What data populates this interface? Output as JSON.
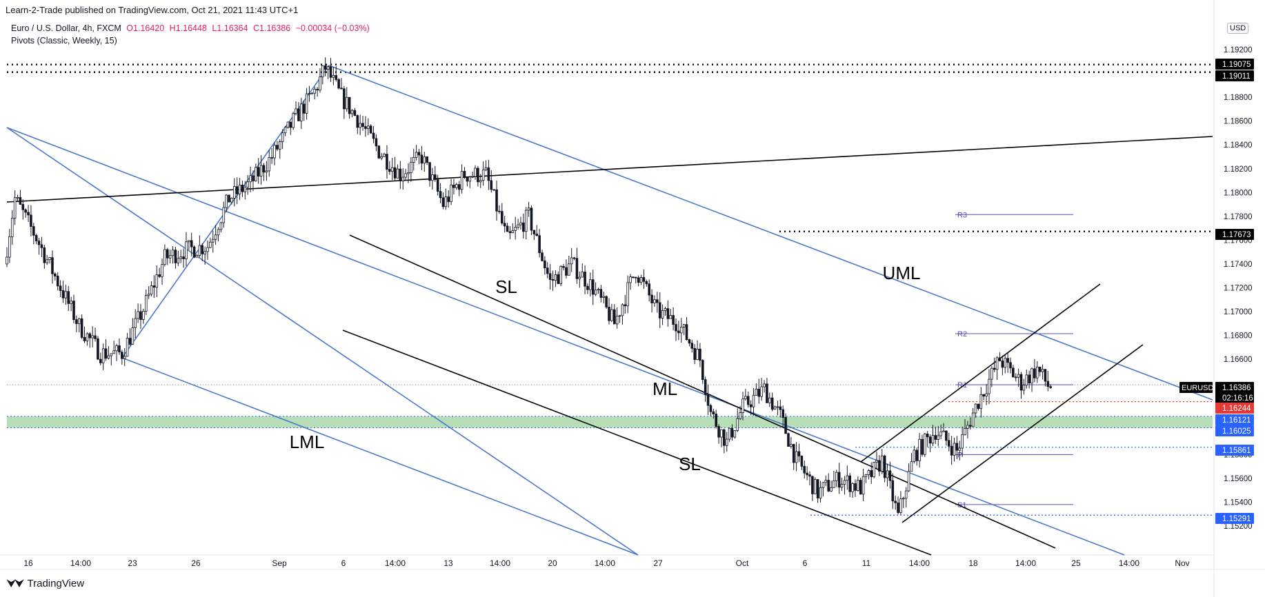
{
  "header": {
    "publisher": "Learn-2-Trade published on TradingView.com, Oct 21, 2021 11:43 UTC+1",
    "symbol_line": "Euro / U.S. Dollar, 4h, FXCM",
    "open": "O1.16420",
    "high": "H1.16448",
    "low": "L1.16364",
    "close": "C1.16386",
    "change": "−0.00034 (−0.03%)",
    "indicator": "Pivots (Classic, Weekly, 15)",
    "currency": "USD"
  },
  "footer": {
    "brand": "TradingView",
    "logo_icon": "tradingview-logo-icon"
  },
  "colors": {
    "candle": "#131722",
    "channel_blue": "#4a78cc",
    "trend_black": "#000000",
    "pivot_purple": "#5b4bbd",
    "support_zone": "#7cc27c",
    "red_level": "#e53935",
    "blue_level": "#2962ff"
  },
  "chart_data": {
    "type": "candlestick",
    "symbol": "EURUSD",
    "timeframe": "4h",
    "ylim": [
      1.151,
      1.1935
    ],
    "y_ticks": [
      "1.19200",
      "1.18800",
      "1.18600",
      "1.18400",
      "1.18200",
      "1.18000",
      "1.17800",
      "1.17600",
      "1.17400",
      "1.17200",
      "1.17000",
      "1.16800",
      "1.16600",
      "1.15800",
      "1.15600",
      "1.15400",
      "1.15200"
    ],
    "x_ticks": [
      "16",
      "14:00",
      "23",
      "26",
      "Sep",
      "6",
      "14:00",
      "13",
      "14:00",
      "20",
      "14:00",
      "27",
      "Oct",
      "6",
      "11",
      "14:00",
      "18",
      "14:00",
      "25",
      "14:00",
      "Nov"
    ],
    "price_tags": [
      {
        "label": "1.19075",
        "value": 1.19075,
        "style": "black"
      },
      {
        "label": "1.19011",
        "value": 1.19011,
        "style": "black"
      },
      {
        "label": "1.17673",
        "value": 1.17673,
        "style": "black"
      },
      {
        "label": "1.16386",
        "value": 1.16386,
        "style": "black"
      },
      {
        "label": "02:16:16",
        "value": 1.1629,
        "style": "black"
      },
      {
        "label": "1.16244",
        "value": 1.16244,
        "style": "red"
      },
      {
        "label": "1.16121",
        "value": 1.16121,
        "style": "blue"
      },
      {
        "label": "1.16025",
        "value": 1.16025,
        "style": "blue"
      },
      {
        "label": "1.15861",
        "value": 1.15861,
        "style": "blue"
      },
      {
        "label": "1.15291",
        "value": 1.15291,
        "style": "blue"
      }
    ],
    "symbol_tag": "EURUSD",
    "pivots": [
      {
        "label": "R3",
        "value": 1.17815
      },
      {
        "label": "R2",
        "value": 1.16815
      },
      {
        "label": "R1",
        "value": 1.16386
      },
      {
        "label": "P",
        "value": 1.158
      },
      {
        "label": "S1",
        "value": 1.1538
      }
    ],
    "support_zone": [
      1.16025,
      1.16121
    ],
    "annotations": [
      "UML",
      "SL",
      "ML",
      "SL",
      "LML"
    ],
    "anchors": [
      {
        "i": 0,
        "v": 1.174
      },
      {
        "i": 4,
        "v": 1.1795
      },
      {
        "i": 12,
        "v": 1.1762
      },
      {
        "i": 20,
        "v": 1.1725
      },
      {
        "i": 28,
        "v": 1.1688
      },
      {
        "i": 36,
        "v": 1.1665
      },
      {
        "i": 44,
        "v": 1.1665
      },
      {
        "i": 52,
        "v": 1.1702
      },
      {
        "i": 60,
        "v": 1.1745
      },
      {
        "i": 68,
        "v": 1.1752
      },
      {
        "i": 76,
        "v": 1.1755
      },
      {
        "i": 84,
        "v": 1.1795
      },
      {
        "i": 92,
        "v": 1.1808
      },
      {
        "i": 100,
        "v": 1.183
      },
      {
        "i": 108,
        "v": 1.186
      },
      {
        "i": 116,
        "v": 1.1885
      },
      {
        "i": 120,
        "v": 1.1905
      },
      {
        "i": 126,
        "v": 1.188
      },
      {
        "i": 132,
        "v": 1.1862
      },
      {
        "i": 140,
        "v": 1.1835
      },
      {
        "i": 148,
        "v": 1.1815
      },
      {
        "i": 156,
        "v": 1.183
      },
      {
        "i": 164,
        "v": 1.179
      },
      {
        "i": 172,
        "v": 1.1815
      },
      {
        "i": 180,
        "v": 1.1815
      },
      {
        "i": 188,
        "v": 1.176
      },
      {
        "i": 196,
        "v": 1.178
      },
      {
        "i": 204,
        "v": 1.1725
      },
      {
        "i": 212,
        "v": 1.174
      },
      {
        "i": 220,
        "v": 1.172
      },
      {
        "i": 228,
        "v": 1.169
      },
      {
        "i": 236,
        "v": 1.1735
      },
      {
        "i": 244,
        "v": 1.17
      },
      {
        "i": 252,
        "v": 1.169
      },
      {
        "i": 260,
        "v": 1.166
      },
      {
        "i": 264,
        "v": 1.1615
      },
      {
        "i": 270,
        "v": 1.159
      },
      {
        "i": 276,
        "v": 1.162
      },
      {
        "i": 284,
        "v": 1.1635
      },
      {
        "i": 290,
        "v": 1.1612
      },
      {
        "i": 296,
        "v": 1.1575
      },
      {
        "i": 304,
        "v": 1.1548
      },
      {
        "i": 312,
        "v": 1.156
      },
      {
        "i": 320,
        "v": 1.1552
      },
      {
        "i": 328,
        "v": 1.1575
      },
      {
        "i": 334,
        "v": 1.1528
      },
      {
        "i": 340,
        "v": 1.158
      },
      {
        "i": 348,
        "v": 1.16
      },
      {
        "i": 356,
        "v": 1.1583
      },
      {
        "i": 364,
        "v": 1.1625
      },
      {
        "i": 372,
        "v": 1.166
      },
      {
        "i": 380,
        "v": 1.164
      },
      {
        "i": 386,
        "v": 1.1652
      },
      {
        "i": 390,
        "v": 1.1638
      }
    ]
  }
}
